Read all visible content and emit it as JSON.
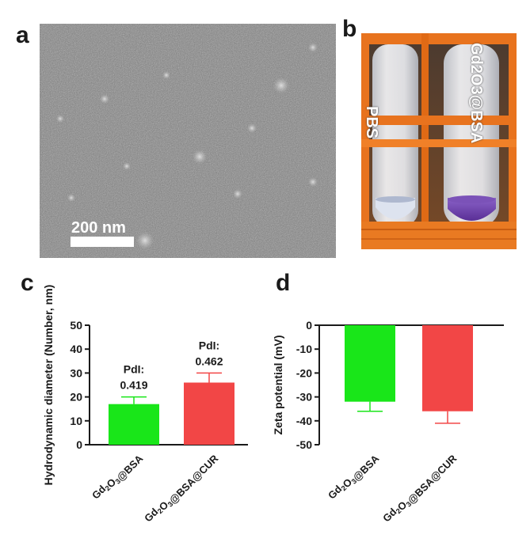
{
  "panels": {
    "a": {
      "letter": "a",
      "scale_bar_label": "200 nm"
    },
    "b": {
      "letter": "b",
      "tube_labels": [
        "PBS",
        "Gd2O3@BSA"
      ],
      "colors": {
        "frame": "#e8731e",
        "liquid_purple": "#6a3fa8",
        "liquid_clear": "#d9dde8"
      }
    },
    "c": {
      "letter": "c"
    },
    "d": {
      "letter": "d"
    }
  },
  "chart_data": [
    {
      "panel": "c",
      "type": "bar",
      "categories": [
        "Gd2O3@BSA",
        "Gd2O3@BSA@CUR"
      ],
      "values": [
        17,
        26
      ],
      "errors": [
        3,
        4
      ],
      "annotations": [
        {
          "label": "PdI:",
          "value": "0.419"
        },
        {
          "label": "PdI:",
          "value": "0.462"
        }
      ],
      "ylabel": "Hydrodynamic diameter  (Number, nm)",
      "ylim": [
        0,
        50
      ],
      "yticks": [
        0,
        10,
        20,
        30,
        40,
        50
      ],
      "colors": [
        "#19e619",
        "#f24646"
      ]
    },
    {
      "panel": "d",
      "type": "bar",
      "categories": [
        "Gd2O3@BSA",
        "Gd2O3@BSA@CUR"
      ],
      "values": [
        -32,
        -36
      ],
      "errors": [
        4,
        5
      ],
      "ylabel": "Zeta potential (mV)",
      "ylim": [
        -50,
        0
      ],
      "yticks": [
        0,
        -10,
        -20,
        -30,
        -40,
        -50
      ],
      "colors": [
        "#19e619",
        "#f24646"
      ]
    }
  ]
}
